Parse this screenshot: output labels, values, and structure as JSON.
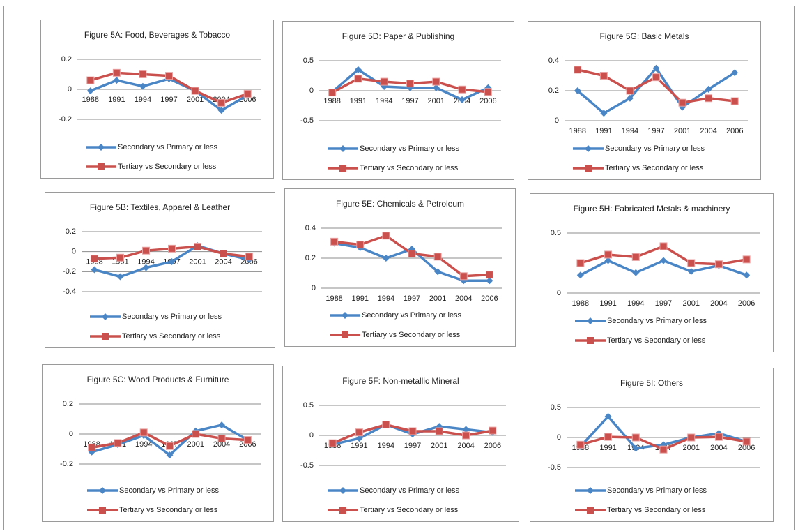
{
  "chart_data": [
    {
      "type": "line",
      "title": "Figure 5A: Food, Beverages & Tobacco",
      "categories": [
        "1988",
        "1991",
        "1994",
        "1997",
        "2001",
        "2004",
        "2006"
      ],
      "series": [
        {
          "name": "Secondary vs Primary or less",
          "color": "#4a86c6",
          "marker": "diamond",
          "values": [
            -0.01,
            0.06,
            0.02,
            0.07,
            -0.01,
            -0.14,
            -0.04
          ]
        },
        {
          "name": "Tertiary vs Secondary or less",
          "color": "#c9504d",
          "marker": "square",
          "values": [
            0.06,
            0.11,
            0.1,
            0.09,
            -0.01,
            -0.09,
            -0.03
          ]
        }
      ],
      "ylim": [
        -0.2,
        0.2
      ],
      "yticks": [
        -0.2,
        0,
        0.2
      ],
      "grid": true
    },
    {
      "type": "line",
      "title": "Figure 5D: Paper & Publishing",
      "categories": [
        "1988",
        "1991",
        "1994",
        "1997",
        "2001",
        "2004",
        "2006"
      ],
      "series": [
        {
          "name": "Secondary vs Primary or less",
          "color": "#4a86c6",
          "marker": "diamond",
          "values": [
            -0.02,
            0.35,
            0.07,
            0.05,
            0.05,
            -0.15,
            0.05
          ]
        },
        {
          "name": "Tertiary vs Secondary or less",
          "color": "#c9504d",
          "marker": "square",
          "values": [
            -0.03,
            0.2,
            0.15,
            0.12,
            0.15,
            0.02,
            -0.02
          ]
        }
      ],
      "ylim": [
        -0.5,
        0.5
      ],
      "yticks": [
        -0.5,
        0,
        0.5
      ],
      "grid": true
    },
    {
      "type": "line",
      "title": "Figure 5G: Basic Metals",
      "categories": [
        "1988",
        "1991",
        "1994",
        "1997",
        "2001",
        "2004",
        "2006"
      ],
      "series": [
        {
          "name": "Secondary vs Primary or less",
          "color": "#4a86c6",
          "marker": "diamond",
          "values": [
            0.2,
            0.05,
            0.15,
            0.35,
            0.09,
            0.21,
            0.32
          ]
        },
        {
          "name": "Tertiary vs Secondary or less",
          "color": "#c9504d",
          "marker": "square",
          "values": [
            0.34,
            0.3,
            0.2,
            0.29,
            0.12,
            0.15,
            0.13
          ]
        }
      ],
      "ylim": [
        0,
        0.4
      ],
      "yticks": [
        0,
        0.2,
        0.4
      ],
      "grid": true
    },
    {
      "type": "line",
      "title": "Figure 5B: Textiles, Apparel & Leather",
      "categories": [
        "1988",
        "1991",
        "1994",
        "1997",
        "2001",
        "2004",
        "2006"
      ],
      "series": [
        {
          "name": "Secondary vs Primary or less",
          "color": "#4a86c6",
          "marker": "diamond",
          "values": [
            -0.18,
            -0.25,
            -0.16,
            -0.1,
            0.06,
            -0.02,
            -0.08
          ]
        },
        {
          "name": "Tertiary vs Secondary or less",
          "color": "#c9504d",
          "marker": "square",
          "values": [
            -0.07,
            -0.06,
            0.01,
            0.03,
            0.05,
            -0.02,
            -0.05
          ]
        }
      ],
      "ylim": [
        -0.4,
        0.2
      ],
      "yticks": [
        -0.4,
        -0.2,
        0,
        0.2
      ],
      "grid": true
    },
    {
      "type": "line",
      "title": "Figure 5E: Chemicals & Petroleum",
      "categories": [
        "1988",
        "1991",
        "1994",
        "1997",
        "2001",
        "2004",
        "2006"
      ],
      "series": [
        {
          "name": "Secondary vs Primary or less",
          "color": "#4a86c6",
          "marker": "diamond",
          "values": [
            0.3,
            0.27,
            0.2,
            0.26,
            0.11,
            0.05,
            0.05
          ]
        },
        {
          "name": "Tertiary vs Secondary or less",
          "color": "#c9504d",
          "marker": "square",
          "values": [
            0.31,
            0.29,
            0.35,
            0.23,
            0.21,
            0.08,
            0.09
          ]
        }
      ],
      "ylim": [
        0,
        0.4
      ],
      "yticks": [
        0,
        0.2,
        0.4
      ],
      "grid": true
    },
    {
      "type": "line",
      "title": "Figure 5H: Fabricated Metals & machinery",
      "categories": [
        "1988",
        "1991",
        "1994",
        "1997",
        "2001",
        "2004",
        "2006"
      ],
      "series": [
        {
          "name": "Secondary vs Primary or less",
          "color": "#4a86c6",
          "marker": "diamond",
          "values": [
            0.15,
            0.27,
            0.17,
            0.27,
            0.18,
            0.23,
            0.15
          ]
        },
        {
          "name": "Tertiary vs Secondary or less",
          "color": "#c9504d",
          "marker": "square",
          "values": [
            0.25,
            0.32,
            0.3,
            0.39,
            0.25,
            0.24,
            0.28
          ]
        }
      ],
      "ylim": [
        0,
        0.5
      ],
      "yticks": [
        0,
        0.5
      ],
      "grid": true
    },
    {
      "type": "line",
      "title": "Figure 5C: Wood Products & Furniture",
      "categories": [
        "1988",
        "1991",
        "1994",
        "1997",
        "2001",
        "2004",
        "2006"
      ],
      "series": [
        {
          "name": "Secondary vs Primary or less",
          "color": "#4a86c6",
          "marker": "diamond",
          "values": [
            -0.12,
            -0.07,
            -0.01,
            -0.14,
            0.02,
            0.06,
            -0.04
          ]
        },
        {
          "name": "Tertiary vs Secondary or less",
          "color": "#c9504d",
          "marker": "square",
          "values": [
            -0.09,
            -0.06,
            0.01,
            -0.08,
            0,
            -0.03,
            -0.04
          ]
        }
      ],
      "ylim": [
        -0.2,
        0.2
      ],
      "yticks": [
        -0.2,
        0,
        0.2
      ],
      "grid": true
    },
    {
      "type": "line",
      "title": "Figure 5F: Non-metallic Mineral",
      "categories": [
        "1988",
        "1991",
        "1994",
        "1997",
        "2001",
        "2004",
        "2006"
      ],
      "series": [
        {
          "name": "Secondary vs Primary or less",
          "color": "#4a86c6",
          "marker": "diamond",
          "values": [
            -0.15,
            -0.05,
            0.18,
            0.02,
            0.15,
            0.1,
            0.05
          ]
        },
        {
          "name": "Tertiary vs Secondary or less",
          "color": "#c9504d",
          "marker": "square",
          "values": [
            -0.13,
            0.05,
            0.18,
            0.07,
            0.07,
            0,
            0.08
          ]
        }
      ],
      "ylim": [
        -0.5,
        0.5
      ],
      "yticks": [
        -0.5,
        0,
        0.5
      ],
      "grid": true
    },
    {
      "type": "line",
      "title": "Figure 5I: Others",
      "categories": [
        "1988",
        "1991",
        "1994",
        "1997",
        "2001",
        "2004",
        "2006"
      ],
      "series": [
        {
          "name": "Secondary vs Primary or less",
          "color": "#4a86c6",
          "marker": "diamond",
          "values": [
            -0.15,
            0.35,
            -0.18,
            -0.12,
            0,
            0.07,
            -0.07
          ]
        },
        {
          "name": "Tertiary vs Secondary or less",
          "color": "#c9504d",
          "marker": "square",
          "values": [
            -0.12,
            0.01,
            0,
            -0.2,
            0,
            0.01,
            -0.07
          ]
        }
      ],
      "ylim": [
        -0.5,
        0.5
      ],
      "yticks": [
        -0.5,
        0,
        0.5
      ],
      "grid": true
    }
  ]
}
